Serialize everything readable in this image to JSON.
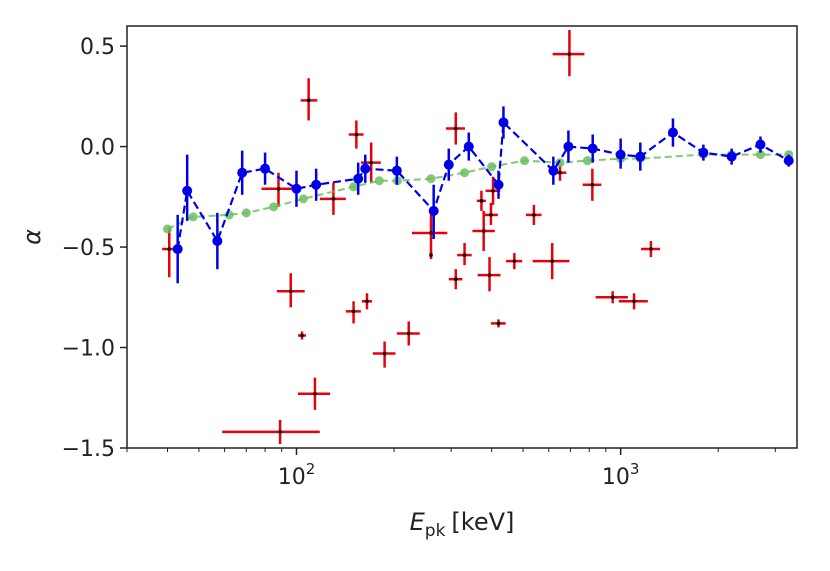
{
  "chart_data": {
    "type": "scatter",
    "x_scale": "log",
    "xlim": [
      30,
      3500
    ],
    "ylim": [
      -1.5,
      0.6
    ],
    "xlabel_main": "E",
    "xlabel_sub": "pk",
    "xlabel_unit": "[keV]",
    "ylabel": "α",
    "x_ticks": [
      {
        "value": 100,
        "base": "10",
        "exp": "2"
      },
      {
        "value": 1000,
        "base": "10",
        "exp": "3"
      }
    ],
    "y_ticks": [
      {
        "value": -1.5,
        "label": "−1.5"
      },
      {
        "value": -1.0,
        "label": "−1.0"
      },
      {
        "value": -0.5,
        "label": "−0.5"
      },
      {
        "value": 0.0,
        "label": "0.0"
      },
      {
        "value": 0.5,
        "label": "0.5"
      }
    ],
    "grid": false,
    "colors": {
      "red_points": "#e8000b",
      "blue_series": "#0000e8",
      "green_series": "#6abf5e",
      "center_dot": "#000000",
      "axes": "#222222"
    },
    "red_points": [
      {
        "x": 40.5,
        "y": -0.51,
        "xlo": 38.5,
        "xhi": 43,
        "ylo": -0.65,
        "yhi": -0.4
      },
      {
        "x": 89,
        "y": -1.42,
        "xlo": 59,
        "xhi": 118,
        "ylo": -1.48,
        "yhi": -1.36
      },
      {
        "x": 88,
        "y": -0.21,
        "xlo": 78,
        "xhi": 99,
        "ylo": -0.3,
        "yhi": -0.13
      },
      {
        "x": 96,
        "y": -0.72,
        "xlo": 87,
        "xhi": 106,
        "ylo": -0.8,
        "yhi": -0.63
      },
      {
        "x": 104,
        "y": -0.94,
        "xlo": 101,
        "xhi": 107,
        "ylo": -0.96,
        "yhi": -0.92
      },
      {
        "x": 109,
        "y": 0.23,
        "xlo": 103,
        "xhi": 116,
        "ylo": 0.13,
        "yhi": 0.34
      },
      {
        "x": 114,
        "y": -1.23,
        "xlo": 101,
        "xhi": 127,
        "ylo": -1.31,
        "yhi": -1.15
      },
      {
        "x": 130,
        "y": -0.26,
        "xlo": 118,
        "xhi": 142,
        "ylo": -0.34,
        "yhi": -0.18
      },
      {
        "x": 150,
        "y": -0.82,
        "xlo": 142,
        "xhi": 158,
        "ylo": -0.88,
        "yhi": -0.77
      },
      {
        "x": 153,
        "y": 0.06,
        "xlo": 145,
        "xhi": 161,
        "ylo": -0.01,
        "yhi": 0.13
      },
      {
        "x": 165,
        "y": -0.77,
        "xlo": 159,
        "xhi": 171,
        "ylo": -0.81,
        "yhi": -0.73
      },
      {
        "x": 170,
        "y": -0.08,
        "xlo": 158,
        "xhi": 182,
        "ylo": -0.18,
        "yhi": 0.02
      },
      {
        "x": 187,
        "y": -1.03,
        "xlo": 172,
        "xhi": 202,
        "ylo": -1.1,
        "yhi": -0.97
      },
      {
        "x": 222,
        "y": -0.93,
        "xlo": 204,
        "xhi": 240,
        "ylo": -0.99,
        "yhi": -0.87
      },
      {
        "x": 260,
        "y": -0.43,
        "xlo": 227,
        "xhi": 292,
        "ylo": -0.55,
        "yhi": -0.32
      },
      {
        "x": 260,
        "y": -0.54,
        "xlo": 258,
        "xhi": 262,
        "ylo": -0.56,
        "yhi": -0.52
      },
      {
        "x": 310,
        "y": 0.09,
        "xlo": 289,
        "xhi": 331,
        "ylo": 0.01,
        "yhi": 0.17
      },
      {
        "x": 310,
        "y": -0.66,
        "xlo": 295,
        "xhi": 325,
        "ylo": -0.71,
        "yhi": -0.61
      },
      {
        "x": 330,
        "y": -0.54,
        "xlo": 313,
        "xhi": 347,
        "ylo": -0.59,
        "yhi": -0.48
      },
      {
        "x": 372,
        "y": -0.27,
        "xlo": 360,
        "xhi": 384,
        "ylo": -0.32,
        "yhi": -0.22
      },
      {
        "x": 378,
        "y": -0.42,
        "xlo": 349,
        "xhi": 409,
        "ylo": -0.52,
        "yhi": -0.32
      },
      {
        "x": 394,
        "y": -0.64,
        "xlo": 362,
        "xhi": 426,
        "ylo": -0.72,
        "yhi": -0.55
      },
      {
        "x": 398,
        "y": -0.34,
        "xlo": 378,
        "xhi": 418,
        "ylo": -0.39,
        "yhi": -0.28
      },
      {
        "x": 404,
        "y": -0.22,
        "xlo": 383,
        "xhi": 425,
        "ylo": -0.29,
        "yhi": -0.15
      },
      {
        "x": 420,
        "y": -0.88,
        "xlo": 398,
        "xhi": 442,
        "ylo": -0.9,
        "yhi": -0.86
      },
      {
        "x": 470,
        "y": -0.57,
        "xlo": 443,
        "xhi": 497,
        "ylo": -0.61,
        "yhi": -0.53
      },
      {
        "x": 540,
        "y": -0.34,
        "xlo": 510,
        "xhi": 570,
        "ylo": -0.39,
        "yhi": -0.29
      },
      {
        "x": 615,
        "y": -0.57,
        "xlo": 535,
        "xhi": 695,
        "ylo": -0.66,
        "yhi": -0.48
      },
      {
        "x": 650,
        "y": -0.13,
        "xlo": 620,
        "xhi": 680,
        "ylo": -0.17,
        "yhi": -0.09
      },
      {
        "x": 695,
        "y": 0.46,
        "xlo": 617,
        "xhi": 773,
        "ylo": 0.35,
        "yhi": 0.58
      },
      {
        "x": 818,
        "y": -0.19,
        "xlo": 764,
        "xhi": 872,
        "ylo": -0.27,
        "yhi": -0.11
      },
      {
        "x": 945,
        "y": -0.75,
        "xlo": 837,
        "xhi": 1053,
        "ylo": -0.78,
        "yhi": -0.72
      },
      {
        "x": 1100,
        "y": -0.77,
        "xlo": 987,
        "xhi": 1213,
        "ylo": -0.81,
        "yhi": -0.73
      },
      {
        "x": 1240,
        "y": -0.51,
        "xlo": 1156,
        "xhi": 1324,
        "ylo": -0.55,
        "yhi": -0.47
      }
    ],
    "blue_series": [
      {
        "x": 43,
        "y": -0.51,
        "ylo": -0.68,
        "yhi": -0.34
      },
      {
        "x": 46,
        "y": -0.22,
        "ylo": -0.37,
        "yhi": -0.04
      },
      {
        "x": 57,
        "y": -0.47,
        "ylo": -0.61,
        "yhi": -0.33
      },
      {
        "x": 68,
        "y": -0.13,
        "ylo": -0.24,
        "yhi": -0.02
      },
      {
        "x": 80,
        "y": -0.11,
        "ylo": -0.19,
        "yhi": -0.03
      },
      {
        "x": 100,
        "y": -0.21,
        "ylo": -0.3,
        "yhi": -0.12
      },
      {
        "x": 115,
        "y": -0.19,
        "ylo": -0.27,
        "yhi": -0.11
      },
      {
        "x": 155,
        "y": -0.16,
        "ylo": -0.24,
        "yhi": -0.08
      },
      {
        "x": 163,
        "y": -0.11,
        "ylo": -0.18,
        "yhi": -0.04
      },
      {
        "x": 204,
        "y": -0.12,
        "ylo": -0.19,
        "yhi": -0.05
      },
      {
        "x": 265,
        "y": -0.32,
        "ylo": -0.46,
        "yhi": -0.19
      },
      {
        "x": 295,
        "y": -0.09,
        "ylo": -0.17,
        "yhi": -0.01
      },
      {
        "x": 340,
        "y": 0.0,
        "ylo": -0.07,
        "yhi": 0.07
      },
      {
        "x": 420,
        "y": -0.19,
        "ylo": -0.26,
        "yhi": -0.12
      },
      {
        "x": 435,
        "y": 0.12,
        "ylo": 0.04,
        "yhi": 0.2
      },
      {
        "x": 620,
        "y": -0.12,
        "ylo": -0.19,
        "yhi": -0.05
      },
      {
        "x": 690,
        "y": 0.0,
        "ylo": -0.08,
        "yhi": 0.08
      },
      {
        "x": 820,
        "y": -0.01,
        "ylo": -0.08,
        "yhi": 0.06
      },
      {
        "x": 1000,
        "y": -0.04,
        "ylo": -0.11,
        "yhi": 0.04
      },
      {
        "x": 1150,
        "y": -0.05,
        "ylo": -0.12,
        "yhi": 0.02
      },
      {
        "x": 1450,
        "y": 0.07,
        "ylo": 0.0,
        "yhi": 0.14
      },
      {
        "x": 1800,
        "y": -0.03,
        "ylo": -0.07,
        "yhi": 0.01
      },
      {
        "x": 2200,
        "y": -0.05,
        "ylo": -0.09,
        "yhi": -0.01
      },
      {
        "x": 2700,
        "y": 0.01,
        "ylo": -0.03,
        "yhi": 0.05
      },
      {
        "x": 3300,
        "y": -0.07,
        "ylo": -0.1,
        "yhi": -0.04
      }
    ],
    "green_series": [
      {
        "x": 40,
        "y": -0.41
      },
      {
        "x": 48,
        "y": -0.35
      },
      {
        "x": 62,
        "y": -0.34
      },
      {
        "x": 70,
        "y": -0.33
      },
      {
        "x": 85,
        "y": -0.3
      },
      {
        "x": 105,
        "y": -0.26
      },
      {
        "x": 150,
        "y": -0.2
      },
      {
        "x": 180,
        "y": -0.17
      },
      {
        "x": 205,
        "y": -0.17
      },
      {
        "x": 260,
        "y": -0.16
      },
      {
        "x": 330,
        "y": -0.13
      },
      {
        "x": 400,
        "y": -0.1
      },
      {
        "x": 505,
        "y": -0.07
      },
      {
        "x": 650,
        "y": -0.08
      },
      {
        "x": 790,
        "y": -0.07
      },
      {
        "x": 1000,
        "y": -0.06
      },
      {
        "x": 1150,
        "y": -0.06
      },
      {
        "x": 1800,
        "y": -0.04
      },
      {
        "x": 2200,
        "y": -0.04
      },
      {
        "x": 2700,
        "y": -0.04
      },
      {
        "x": 3300,
        "y": -0.04
      }
    ]
  }
}
